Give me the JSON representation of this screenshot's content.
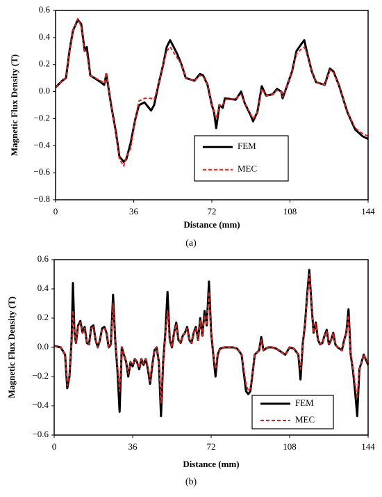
{
  "chart_data": [
    {
      "type": "line",
      "caption": "(a)",
      "x_label": "Distance (mm)",
      "y_label": "Magnetic Flux Density (T)",
      "xlim": [
        0,
        144
      ],
      "xticks": [
        0,
        36,
        72,
        108,
        144
      ],
      "ylim": [
        -0.8,
        0.6
      ],
      "yticks": [
        {
          "value": 0.6,
          "label": "0.6"
        },
        {
          "value": 0.4,
          "label": "0.4"
        },
        {
          "value": 0.2,
          "label": "0.2"
        },
        {
          "value": 0,
          "label": "0.0"
        },
        {
          "value": -0.2,
          "label": "−0.2"
        },
        {
          "value": -0.4,
          "label": "−0.4"
        },
        {
          "value": -0.6,
          "label": "−0.6"
        },
        {
          "value": -0.8,
          "label": "−0.8"
        }
      ],
      "legend": "center right",
      "x": [
        0,
        3,
        4.8,
        6.4,
        8,
        10.2,
        11.8,
        13.4,
        14.4,
        16,
        20.8,
        22.4,
        23.4,
        25.6,
        27.8,
        29.4,
        31.4,
        32.6,
        34.6,
        36.8,
        38.4,
        41,
        44,
        45.4,
        47.4,
        49.6,
        51.2,
        52.8,
        56,
        58,
        60,
        64,
        66.5,
        68,
        70,
        72,
        73,
        74,
        75.5,
        77,
        78,
        83,
        85.5,
        87,
        90,
        91,
        93,
        95,
        97,
        100,
        102,
        104,
        104.6,
        109,
        111,
        113.6,
        114.6,
        116,
        118,
        120,
        124,
        126.4,
        128,
        130.5,
        134.4,
        138,
        141.4,
        144
      ],
      "series": [
        {
          "name": "FEM",
          "color": "#000000",
          "style": "solid",
          "values": [
            0.03,
            0.08,
            0.1,
            0.3,
            0.45,
            0.53,
            0.5,
            0.3,
            0.33,
            0.12,
            0.07,
            0.05,
            0.13,
            -0.1,
            -0.3,
            -0.48,
            -0.52,
            -0.5,
            -0.38,
            -0.2,
            -0.1,
            -0.08,
            -0.14,
            -0.1,
            0.05,
            0.2,
            0.33,
            0.38,
            0.28,
            0.2,
            0.1,
            0.08,
            0.13,
            0.12,
            0.05,
            -0.1,
            -0.15,
            -0.27,
            -0.1,
            -0.12,
            -0.05,
            -0.06,
            0.0,
            -0.08,
            -0.18,
            -0.22,
            -0.15,
            0.04,
            -0.03,
            -0.02,
            0.02,
            0.0,
            -0.05,
            0.15,
            0.3,
            0.36,
            0.38,
            0.28,
            0.15,
            0.07,
            0.05,
            0.17,
            0.15,
            0.05,
            -0.15,
            -0.28,
            -0.33,
            -0.35
          ]
        },
        {
          "name": "MEC",
          "color": "#e8201a",
          "style": "dashed",
          "values": [
            0.03,
            0.08,
            0.1,
            0.3,
            0.45,
            0.54,
            0.48,
            0.3,
            0.28,
            0.12,
            0.08,
            0.06,
            0.14,
            -0.1,
            -0.32,
            -0.5,
            -0.55,
            -0.48,
            -0.42,
            -0.2,
            -0.07,
            -0.05,
            -0.05,
            -0.06,
            0.05,
            0.2,
            0.3,
            0.33,
            0.25,
            0.2,
            0.1,
            0.08,
            0.12,
            0.11,
            0.05,
            -0.1,
            -0.15,
            -0.2,
            -0.1,
            -0.1,
            -0.06,
            -0.05,
            -0.02,
            -0.08,
            -0.17,
            -0.2,
            -0.15,
            0.02,
            -0.03,
            -0.02,
            0.01,
            0.0,
            -0.04,
            0.15,
            0.28,
            0.32,
            0.33,
            0.27,
            0.15,
            0.07,
            0.05,
            0.16,
            0.14,
            0.05,
            -0.15,
            -0.27,
            -0.31,
            -0.33
          ]
        }
      ]
    },
    {
      "type": "line",
      "caption": "(b)",
      "x_label": "Distance (mm)",
      "y_label": "Magnetic Flux Density (T)",
      "xlim": [
        0,
        144
      ],
      "xticks": [
        0,
        36,
        72,
        108,
        144
      ],
      "ylim": [
        -0.6,
        0.6
      ],
      "yticks": [
        {
          "value": 0.6,
          "label": "0.6"
        },
        {
          "value": 0.4,
          "label": "0.4"
        },
        {
          "value": 0.2,
          "label": "0.2"
        },
        {
          "value": 0,
          "label": "0.0"
        },
        {
          "value": -0.2,
          "label": "−0.2"
        },
        {
          "value": -0.4,
          "label": "−0.4"
        },
        {
          "value": -0.6,
          "label": "−0.6"
        }
      ],
      "legend": "lower right",
      "x": [
        0,
        3,
        5,
        6,
        7,
        8,
        8.6,
        9.3,
        10,
        11,
        12,
        13,
        14,
        15,
        16,
        17,
        18,
        19,
        20,
        21,
        22,
        23,
        24,
        25,
        26,
        27,
        28,
        29,
        30,
        31,
        32,
        33,
        34,
        35,
        36,
        37,
        38,
        39,
        40,
        41,
        42,
        43,
        44,
        45,
        46,
        47,
        48,
        49,
        50,
        51,
        52,
        53,
        54,
        55,
        56,
        57,
        58,
        59,
        60,
        61,
        62,
        63,
        64,
        65,
        66,
        67,
        68,
        69,
        70,
        71,
        72,
        73,
        74,
        75,
        76,
        78,
        80,
        82,
        84,
        86,
        88,
        89,
        90,
        92,
        94,
        95,
        96,
        98,
        100,
        102,
        104,
        106,
        108,
        110,
        112,
        113,
        114,
        115,
        116,
        117,
        118,
        119,
        120,
        121,
        122,
        123,
        124,
        125,
        126,
        127,
        128,
        129,
        130,
        131,
        132,
        133,
        134,
        135,
        136,
        137,
        138,
        139,
        140,
        141,
        142,
        144
      ],
      "series": [
        {
          "name": "FEM",
          "color": "#000000",
          "style": "solid",
          "values": [
            0.01,
            0.0,
            -0.05,
            -0.28,
            -0.2,
            0.05,
            0.44,
            0.1,
            0.03,
            0.15,
            0.18,
            0.1,
            0.14,
            0.03,
            0.02,
            0.14,
            0.15,
            0.05,
            0.0,
            0.05,
            0.13,
            0.14,
            0.1,
            0.0,
            0.02,
            0.36,
            0.05,
            -0.15,
            -0.44,
            0.0,
            -0.05,
            -0.1,
            -0.2,
            -0.1,
            -0.13,
            -0.08,
            -0.1,
            -0.15,
            -0.08,
            -0.12,
            -0.08,
            -0.15,
            -0.25,
            -0.12,
            -0.02,
            0.0,
            -0.1,
            -0.47,
            -0.1,
            0.1,
            0.38,
            0.05,
            0.0,
            0.1,
            0.17,
            0.05,
            0.03,
            0.08,
            0.1,
            0.14,
            0.05,
            0.03,
            0.1,
            0.14,
            0.05,
            0.2,
            0.08,
            0.25,
            0.15,
            0.45,
            0.1,
            -0.05,
            -0.2,
            -0.05,
            -0.01,
            0.0,
            0.0,
            0.0,
            -0.01,
            -0.05,
            -0.3,
            -0.32,
            -0.3,
            -0.05,
            -0.02,
            0.07,
            -0.02,
            0.0,
            0.0,
            -0.01,
            -0.03,
            -0.05,
            0.0,
            -0.01,
            -0.05,
            -0.22,
            0.02,
            0.15,
            0.35,
            0.53,
            0.3,
            0.1,
            0.17,
            0.05,
            0.02,
            0.03,
            0.08,
            0.12,
            0.02,
            0.05,
            0.1,
            0.02,
            0.0,
            -0.01,
            -0.02,
            0.05,
            0.1,
            0.26,
            -0.05,
            -0.15,
            -0.3,
            -0.47,
            -0.15,
            -0.1,
            -0.05,
            -0.12
          ]
        },
        {
          "name": "MEC",
          "color": "#e8201a",
          "style": "dashed",
          "values": [
            0.01,
            0.0,
            -0.05,
            -0.26,
            -0.2,
            0.05,
            0.25,
            0.1,
            0.03,
            0.14,
            0.17,
            0.1,
            0.13,
            0.03,
            0.02,
            0.13,
            0.14,
            0.05,
            0.0,
            0.05,
            0.12,
            0.13,
            0.1,
            0.0,
            0.02,
            0.3,
            0.05,
            -0.12,
            -0.3,
            0.0,
            -0.05,
            -0.1,
            -0.18,
            -0.1,
            -0.12,
            -0.08,
            -0.1,
            -0.14,
            -0.08,
            -0.11,
            -0.08,
            -0.14,
            -0.23,
            -0.12,
            -0.02,
            0.0,
            -0.1,
            -0.38,
            -0.1,
            0.08,
            0.25,
            0.05,
            0.0,
            0.1,
            0.16,
            0.05,
            0.03,
            0.08,
            0.1,
            0.13,
            0.05,
            0.03,
            0.1,
            0.13,
            0.05,
            0.18,
            0.08,
            0.22,
            0.15,
            0.38,
            0.1,
            -0.05,
            -0.15,
            -0.05,
            -0.01,
            0.0,
            0.0,
            0.0,
            -0.01,
            -0.05,
            -0.25,
            -0.3,
            -0.28,
            -0.05,
            -0.02,
            0.05,
            -0.02,
            0.0,
            0.0,
            -0.01,
            -0.03,
            -0.05,
            0.0,
            -0.01,
            -0.05,
            -0.15,
            0.02,
            0.15,
            0.33,
            0.5,
            0.3,
            0.1,
            0.16,
            0.05,
            0.02,
            0.03,
            0.08,
            0.11,
            0.02,
            0.05,
            0.1,
            0.02,
            0.0,
            -0.01,
            -0.02,
            0.05,
            0.1,
            0.22,
            -0.05,
            -0.14,
            -0.25,
            -0.35,
            -0.15,
            -0.1,
            -0.05,
            -0.11
          ]
        }
      ]
    }
  ]
}
